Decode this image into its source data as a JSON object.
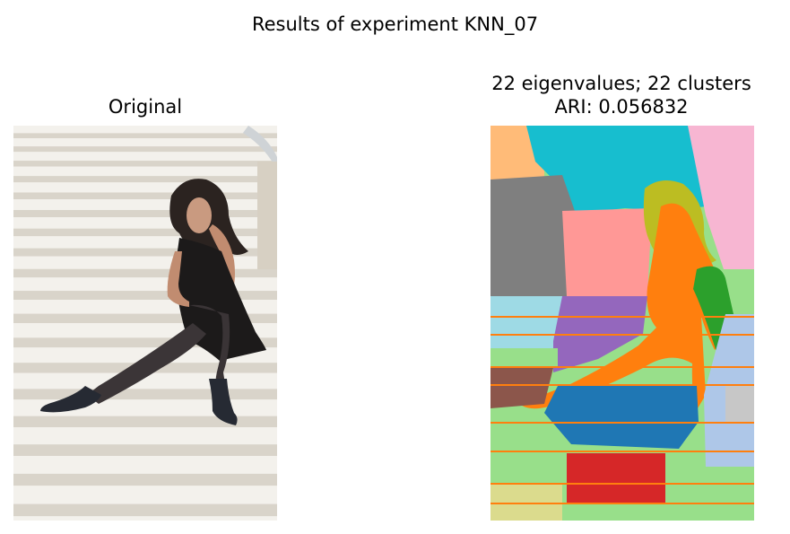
{
  "figure": {
    "suptitle": "Results of experiment KNN_07"
  },
  "left_panel": {
    "title": "Original",
    "image": "photo-woman-sitting-on-stairs"
  },
  "right_panel": {
    "title_line1": "22 eigenvalues; 22 clusters",
    "title_line2": "ARI: 0.056832",
    "image": "segmentation-cluster-map",
    "palette": [
      "#ffbb78",
      "#17becf",
      "#f7b6d2",
      "#7f7f7f",
      "#ff9896",
      "#bcbd22",
      "#2ca02c",
      "#ff7f0e",
      "#9edae5",
      "#9467bd",
      "#c5b0d5",
      "#aec7e8",
      "#98df8a",
      "#8c564b",
      "#1f77b4",
      "#c7c7c7",
      "#d62728",
      "#dbdb8d",
      "#e377c2",
      "#c49c94"
    ]
  }
}
